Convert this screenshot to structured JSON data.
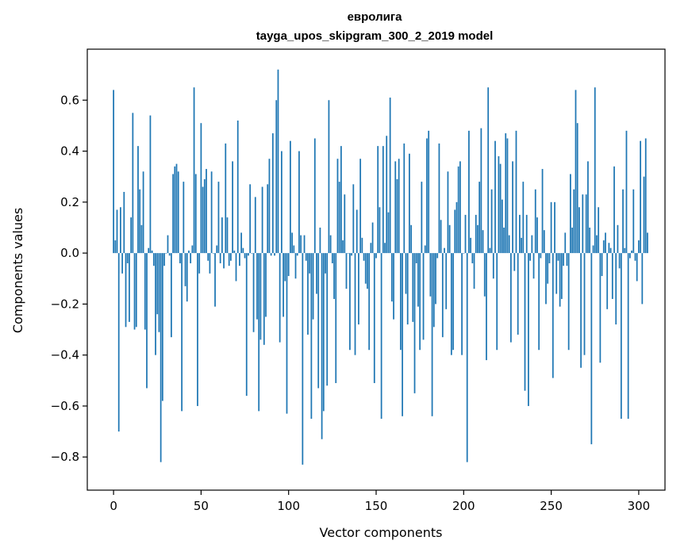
{
  "chart_data": {
    "type": "bar",
    "title": [
      "евролига",
      "tayga_upos_skipgram_300_2_2019 model"
    ],
    "xlabel": "Vector components",
    "ylabel": "Components values",
    "xlim": [
      -15,
      315
    ],
    "ylim": [
      -0.93,
      0.8
    ],
    "xticks": [
      0,
      50,
      100,
      150,
      200,
      250,
      300
    ],
    "yticks": [
      -0.8,
      -0.6,
      -0.4,
      -0.2,
      0.0,
      0.2,
      0.4,
      0.6
    ],
    "ytick_labels": [
      "−0.8",
      "−0.6",
      "−0.4",
      "−0.2",
      "0.0",
      "0.2",
      "0.4",
      "0.6"
    ],
    "grid": false,
    "bar_color": "#1f77b4",
    "x_start": 0,
    "values": [
      0.64,
      0.05,
      0.17,
      -0.7,
      0.18,
      -0.08,
      0.24,
      -0.29,
      -0.04,
      -0.27,
      0.14,
      0.55,
      -0.3,
      -0.29,
      0.42,
      0.25,
      0.11,
      0.32,
      -0.3,
      -0.53,
      0.02,
      0.54,
      0.01,
      -0.05,
      -0.4,
      -0.24,
      -0.31,
      -0.82,
      -0.58,
      -0.05,
      0.0,
      0.07,
      -0.01,
      -0.33,
      0.31,
      0.34,
      0.35,
      0.32,
      -0.04,
      -0.62,
      0.28,
      -0.13,
      -0.19,
      0.01,
      -0.04,
      0.03,
      0.65,
      0.31,
      -0.6,
      -0.08,
      0.51,
      0.26,
      0.29,
      0.33,
      -0.03,
      -0.08,
      0.32,
      0.0,
      -0.21,
      0.03,
      0.28,
      -0.04,
      0.14,
      -0.06,
      0.43,
      0.14,
      -0.05,
      -0.03,
      0.36,
      0.01,
      -0.11,
      0.52,
      -0.05,
      0.08,
      0.02,
      -0.02,
      -0.56,
      -0.01,
      0.27,
      0.0,
      -0.31,
      0.22,
      -0.26,
      -0.62,
      -0.34,
      0.26,
      -0.36,
      -0.25,
      0.27,
      0.37,
      -0.01,
      0.47,
      -0.01,
      0.6,
      0.72,
      -0.35,
      0.4,
      -0.25,
      -0.11,
      -0.63,
      -0.09,
      0.44,
      0.08,
      0.03,
      -0.1,
      -0.01,
      0.4,
      0.07,
      -0.83,
      0.07,
      -0.03,
      -0.32,
      -0.08,
      -0.65,
      -0.26,
      0.45,
      -0.16,
      -0.53,
      0.1,
      -0.73,
      -0.62,
      -0.08,
      -0.52,
      0.6,
      0.07,
      -0.04,
      -0.18,
      -0.51,
      0.37,
      0.28,
      0.42,
      0.05,
      0.23,
      -0.14,
      0.0,
      -0.38,
      -0.01,
      0.27,
      -0.4,
      0.17,
      -0.28,
      0.37,
      0.06,
      -0.03,
      -0.12,
      -0.14,
      -0.38,
      0.04,
      0.12,
      -0.51,
      -0.02,
      0.42,
      0.18,
      -0.65,
      0.42,
      0.04,
      0.46,
      0.16,
      0.61,
      -0.19,
      -0.26,
      0.36,
      0.29,
      0.37,
      -0.38,
      -0.64,
      0.43,
      -0.16,
      -0.28,
      0.39,
      0.11,
      -0.27,
      -0.55,
      -0.04,
      -0.21,
      -0.38,
      0.28,
      -0.34,
      0.03,
      0.45,
      0.48,
      -0.17,
      -0.64,
      -0.29,
      -0.2,
      -0.02,
      0.43,
      0.13,
      -0.33,
      0.02,
      -0.22,
      0.32,
      0.11,
      -0.4,
      -0.38,
      0.17,
      0.2,
      0.34,
      0.36,
      -0.4,
      0.0,
      0.15,
      -0.82,
      0.48,
      0.06,
      -0.04,
      -0.14,
      0.15,
      0.11,
      0.28,
      0.49,
      0.09,
      -0.17,
      -0.42,
      0.65,
      0.02,
      0.25,
      -0.1,
      0.44,
      -0.38,
      0.38,
      0.35,
      0.21,
      0.1,
      0.47,
      0.45,
      0.07,
      -0.35,
      0.36,
      -0.07,
      0.48,
      -0.32,
      0.15,
      0.06,
      0.28,
      -0.54,
      0.15,
      -0.6,
      -0.03,
      0.07,
      -0.1,
      0.25,
      0.14,
      -0.38,
      -0.02,
      0.33,
      0.09,
      -0.2,
      -0.12,
      -0.04,
      0.2,
      -0.49,
      0.2,
      -0.16,
      -0.03,
      -0.21,
      -0.18,
      -0.05,
      0.08,
      -0.05,
      -0.38,
      0.31,
      0.1,
      0.25,
      0.64,
      0.51,
      0.18,
      -0.45,
      0.23,
      -0.4,
      0.23,
      0.36,
      0.1,
      -0.75,
      0.03,
      0.65,
      0.07,
      0.18,
      -0.43,
      -0.09,
      0.05,
      0.08,
      -0.22,
      0.04,
      0.02,
      -0.18,
      0.34,
      -0.28,
      0.11,
      -0.06,
      -0.65,
      0.25,
      0.02,
      0.48,
      -0.65,
      -0.02,
      0.01,
      0.25,
      -0.03,
      -0.11,
      0.05,
      0.44,
      -0.2,
      0.3,
      0.45,
      0.08
    ]
  }
}
